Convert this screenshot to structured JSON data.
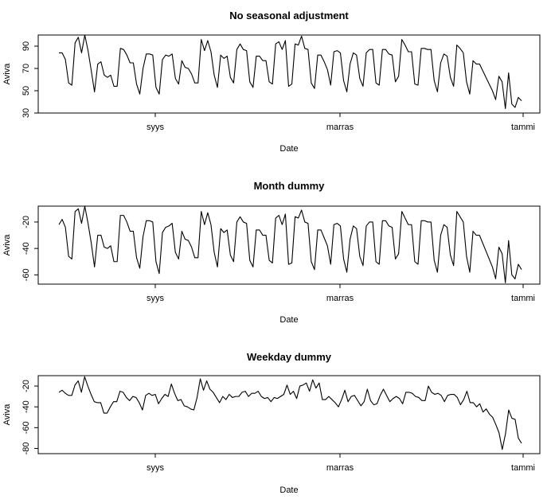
{
  "chart_data": [
    {
      "type": "line",
      "title": "No seasonal adjustment",
      "xlabel": "Date",
      "ylabel": "Aviva",
      "x_ticks": [
        "syys",
        "marras",
        "tammi"
      ],
      "y_ticks": [
        30,
        50,
        70,
        90
      ],
      "ylim": [
        30,
        100
      ],
      "series": [
        {
          "values": [
            84,
            84,
            78,
            57,
            55,
            93,
            98,
            84,
            100,
            86,
            68,
            49,
            74,
            76,
            64,
            62,
            64,
            54,
            54,
            88,
            87,
            82,
            75,
            75,
            56,
            47,
            70,
            83,
            83,
            82,
            53,
            47,
            78,
            82,
            81,
            83,
            61,
            56,
            77,
            71,
            70,
            65,
            57,
            57,
            96,
            86,
            95,
            85,
            64,
            53,
            82,
            79,
            81,
            62,
            57,
            87,
            92,
            87,
            86,
            58,
            53,
            81,
            81,
            77,
            77,
            58,
            56,
            92,
            94,
            87,
            95,
            54,
            56,
            92,
            91,
            99,
            88,
            87,
            57,
            52,
            82,
            82,
            76,
            69,
            55,
            85,
            86,
            84,
            59,
            49,
            74,
            84,
            82,
            61,
            54,
            84,
            87,
            87,
            57,
            55,
            87,
            87,
            83,
            82,
            58,
            63,
            96,
            91,
            85,
            85,
            56,
            55,
            88,
            88,
            87,
            87,
            59,
            49,
            75,
            83,
            81,
            62,
            54,
            91,
            88,
            84,
            58,
            47,
            77,
            74,
            74,
            68,
            62,
            56,
            50,
            42,
            63,
            58,
            34,
            66,
            38,
            35,
            44,
            41
          ]
        }
      ]
    },
    {
      "type": "line",
      "title": "Month dummy",
      "xlabel": "Date",
      "ylabel": "Aviva",
      "x_ticks": [
        "syys",
        "marras",
        "tammi"
      ],
      "y_ticks": [
        -60,
        -40,
        -20
      ],
      "ylim": [
        -67,
        -8
      ],
      "series": [
        {
          "values": [
            -22,
            -18,
            -24,
            -46,
            -48,
            -12,
            -10,
            -21,
            -8,
            -21,
            -36,
            -54,
            -30,
            -30,
            -39,
            -40,
            -38,
            -50,
            -50,
            -15,
            -15,
            -20,
            -27,
            -27,
            -47,
            -55,
            -31,
            -19,
            -19,
            -20,
            -50,
            -59,
            -28,
            -24,
            -23,
            -21,
            -43,
            -48,
            -27,
            -33,
            -34,
            -39,
            -47,
            -47,
            -12,
            -22,
            -13,
            -22,
            -43,
            -54,
            -25,
            -28,
            -26,
            -45,
            -50,
            -20,
            -16,
            -20,
            -21,
            -49,
            -54,
            -26,
            -26,
            -30,
            -30,
            -49,
            -51,
            -17,
            -15,
            -22,
            -14,
            -52,
            -51,
            -16,
            -17,
            -11,
            -20,
            -21,
            -50,
            -56,
            -26,
            -26,
            -32,
            -38,
            -52,
            -22,
            -21,
            -23,
            -48,
            -58,
            -33,
            -23,
            -25,
            -46,
            -53,
            -23,
            -20,
            -20,
            -50,
            -52,
            -19,
            -19,
            -23,
            -24,
            -48,
            -44,
            -12,
            -17,
            -22,
            -22,
            -50,
            -52,
            -19,
            -19,
            -20,
            -20,
            -49,
            -58,
            -30,
            -22,
            -24,
            -45,
            -53,
            -12,
            -16,
            -20,
            -46,
            -58,
            -27,
            -30,
            -30,
            -36,
            -42,
            -48,
            -54,
            -63,
            -39,
            -44,
            -66,
            -34,
            -60,
            -63,
            -52,
            -56
          ]
        }
      ]
    },
    {
      "type": "line",
      "title": "Weekday dummy",
      "xlabel": "Date",
      "ylabel": "Aviva",
      "x_ticks": [
        "syys",
        "marras",
        "tammi"
      ],
      "y_ticks": [
        -80,
        -60,
        -40,
        -20
      ],
      "ylim": [
        -85,
        -10
      ],
      "series": [
        {
          "values": [
            -26,
            -24,
            -27,
            -29,
            -29,
            -19,
            -15,
            -26,
            -11,
            -20,
            -28,
            -35,
            -36,
            -36,
            -46,
            -46,
            -40,
            -35,
            -35,
            -25,
            -26,
            -31,
            -34,
            -30,
            -31,
            -36,
            -43,
            -29,
            -27,
            -29,
            -28,
            -37,
            -32,
            -28,
            -30,
            -18,
            -27,
            -34,
            -33,
            -39,
            -40,
            -42,
            -43,
            -31,
            -13,
            -24,
            -15,
            -23,
            -26,
            -31,
            -36,
            -30,
            -33,
            -28,
            -31,
            -30,
            -30,
            -26,
            -25,
            -30,
            -27,
            -27,
            -25,
            -30,
            -32,
            -31,
            -35,
            -31,
            -32,
            -30,
            -28,
            -19,
            -28,
            -25,
            -32,
            -20,
            -19,
            -17,
            -25,
            -14,
            -22,
            -17,
            -33,
            -33,
            -30,
            -33,
            -36,
            -40,
            -33,
            -24,
            -35,
            -30,
            -29,
            -34,
            -39,
            -35,
            -23,
            -34,
            -38,
            -37,
            -29,
            -23,
            -29,
            -35,
            -32,
            -30,
            -32,
            -37,
            -26,
            -26,
            -27,
            -30,
            -31,
            -34,
            -34,
            -20,
            -26,
            -28,
            -27,
            -29,
            -35,
            -29,
            -28,
            -28,
            -31,
            -38,
            -33,
            -25,
            -36,
            -36,
            -40,
            -37,
            -45,
            -42,
            -47,
            -50,
            -57,
            -65,
            -81,
            -66,
            -43,
            -51,
            -52,
            -70,
            -75
          ]
        }
      ]
    }
  ]
}
